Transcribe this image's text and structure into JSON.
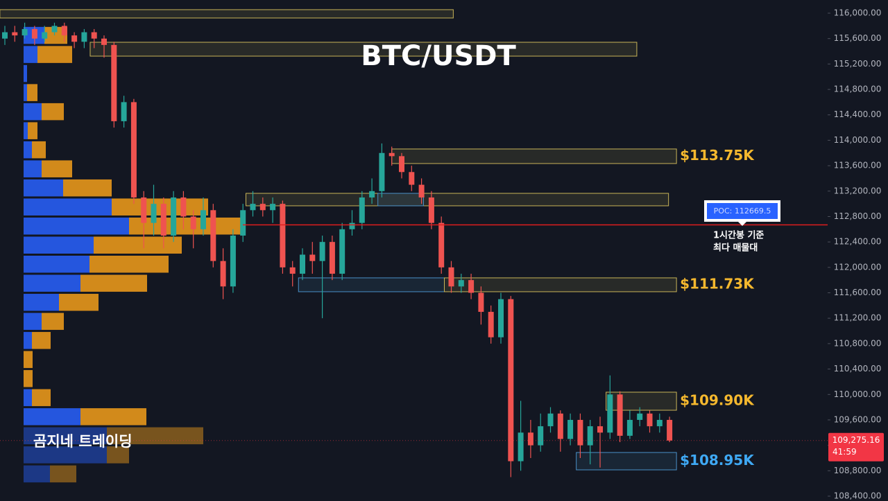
{
  "chart_data": {
    "type": "candlestick",
    "title": "BTC/USDT",
    "watermark": "곰지네 트레이딩",
    "up_color": "#26a69a",
    "down_color": "#ef5350",
    "ylim": [
      108400,
      116000
    ],
    "yticks": [
      {
        "value": 108400,
        "label": "108,400.00"
      },
      {
        "value": 108800,
        "label": "108,800.00"
      },
      {
        "value": 109200,
        "label": "109,200.00"
      },
      {
        "value": 109600,
        "label": "109,600.00"
      },
      {
        "value": 110000,
        "label": "110,000.00"
      },
      {
        "value": 110400,
        "label": "110,400.00"
      },
      {
        "value": 110800,
        "label": "110,800.00"
      },
      {
        "value": 111200,
        "label": "111,200.00"
      },
      {
        "value": 111600,
        "label": "111,600.00"
      },
      {
        "value": 112000,
        "label": "112,000.00"
      },
      {
        "value": 112400,
        "label": "112,400.00"
      },
      {
        "value": 112800,
        "label": "112,800.00"
      },
      {
        "value": 113200,
        "label": "113,200.00"
      },
      {
        "value": 113600,
        "label": "113,600.00"
      },
      {
        "value": 114000,
        "label": "114,000.00"
      },
      {
        "value": 114400,
        "label": "114,400.00"
      },
      {
        "value": 114800,
        "label": "114,800.00"
      },
      {
        "value": 115200,
        "label": "115,200.00"
      },
      {
        "value": 115600,
        "label": "115,600.00"
      },
      {
        "value": 116000,
        "label": "116,000.00"
      }
    ],
    "open": [
      115600,
      115700,
      115650,
      115750,
      115600,
      115700,
      115800,
      115650,
      115550,
      115700,
      115600,
      115500,
      114300,
      114600,
      113100,
      112700,
      113000,
      112500,
      113100,
      112800,
      112600,
      112900,
      112100,
      111700,
      112500,
      112900,
      113000,
      112900,
      113000,
      112000,
      111900,
      112200,
      112100,
      112400,
      111900,
      112600,
      112700,
      113100,
      113200,
      113800,
      113750,
      113500,
      113300,
      113100,
      112700,
      112000,
      111700,
      111800,
      111600,
      111300,
      110900,
      111500,
      108950,
      109400,
      109200,
      109500,
      109700,
      109300,
      109600,
      109200,
      109500,
      109400,
      110000,
      109350,
      109600,
      109700,
      109500,
      109600
    ],
    "high": [
      115800,
      115800,
      115850,
      115800,
      115800,
      115850,
      115850,
      115700,
      115750,
      115750,
      115650,
      115550,
      114700,
      114650,
      113200,
      113300,
      113100,
      113200,
      113200,
      112900,
      113100,
      113000,
      112300,
      112600,
      113000,
      113200,
      113100,
      113100,
      113050,
      112100,
      112300,
      112400,
      112500,
      112500,
      112700,
      112900,
      113200,
      113400,
      113950,
      113900,
      113800,
      113600,
      113400,
      113200,
      112800,
      112100,
      111900,
      111900,
      111700,
      111400,
      111600,
      111550,
      109900,
      109600,
      109700,
      109800,
      109750,
      109700,
      109700,
      109600,
      109650,
      110300,
      110050,
      109750,
      109800,
      109750,
      109700,
      109650
    ],
    "low": [
      115500,
      115550,
      115600,
      115500,
      115550,
      115650,
      115550,
      115450,
      115450,
      115450,
      115300,
      114200,
      114200,
      113000,
      112300,
      112500,
      112300,
      112400,
      112600,
      112300,
      112500,
      112000,
      111500,
      111600,
      112400,
      112800,
      112800,
      112700,
      111900,
      111700,
      111800,
      111900,
      111200,
      111800,
      111800,
      112500,
      112600,
      113000,
      113100,
      113600,
      113400,
      113200,
      113000,
      112600,
      111900,
      111600,
      111600,
      111500,
      111100,
      110800,
      110800,
      108700,
      108800,
      109000,
      109100,
      109400,
      109100,
      109200,
      109000,
      108900,
      108850,
      109300,
      109250,
      109300,
      109500,
      109400,
      109400,
      109250
    ],
    "close": [
      115700,
      115650,
      115750,
      115600,
      115700,
      115800,
      115650,
      115550,
      115700,
      115600,
      115500,
      114300,
      114600,
      113100,
      112700,
      113000,
      112500,
      113100,
      112800,
      112600,
      112900,
      112100,
      111700,
      112500,
      112900,
      113000,
      112900,
      113000,
      112000,
      111900,
      112200,
      112100,
      112400,
      111900,
      112600,
      112700,
      113100,
      113200,
      113800,
      113750,
      113500,
      113300,
      113100,
      112700,
      112000,
      111700,
      111800,
      111600,
      111300,
      110900,
      111500,
      108950,
      109400,
      109200,
      109500,
      109700,
      109300,
      109600,
      109200,
      109500,
      109400,
      110000,
      109350,
      109600,
      109700,
      109500,
      109600,
      109275
    ],
    "volume_profile": {
      "bins": [
        115800,
        115500,
        115200,
        114900,
        114600,
        114300,
        114000,
        113700,
        113400,
        113100,
        112800,
        112500,
        112200,
        111900,
        111600,
        111300,
        111000,
        110700,
        110400,
        110100,
        109800,
        109500,
        109200,
        108900,
        108600
      ],
      "up_color": "#2962ff",
      "down_color": "#f59f1a",
      "up": [
        30,
        20,
        5,
        5,
        26,
        6,
        12,
        26,
        57,
        127,
        152,
        101,
        95,
        82,
        51,
        26,
        12,
        0,
        0,
        12,
        82,
        120,
        120,
        38
      ],
      "down": [
        33,
        50,
        0,
        15,
        32,
        14,
        20,
        44,
        70,
        139,
        165,
        127,
        114,
        96,
        57,
        32,
        27,
        13,
        13,
        27,
        95,
        139,
        32,
        38
      ]
    },
    "zones": [
      {
        "top": 116055,
        "bottom": 115924,
        "start": -0.5,
        "end": 45.2,
        "color": "#c9b458"
      },
      {
        "top": 115542,
        "bottom": 115324,
        "start": 8.6,
        "end": 63.7,
        "color": "#c9b458"
      },
      {
        "top": 113863,
        "bottom": 113634,
        "start": 39,
        "end": 67.7,
        "color": "#c9b458",
        "label": "$113.75K"
      },
      {
        "top": 113165,
        "bottom": 112969,
        "start": 24.3,
        "end": 66.9,
        "color": "#c9b458"
      },
      {
        "top": 113165,
        "bottom": 112969,
        "start": 37.6,
        "end": 42.2,
        "color": "#4a90c8"
      },
      {
        "top": 111835,
        "bottom": 111617,
        "start": 29.6,
        "end": 44.3,
        "color": "#4a90c8"
      },
      {
        "top": 111835,
        "bottom": 111617,
        "start": 44.3,
        "end": 67.7,
        "color": "#c9b458",
        "label": "$111.73K"
      },
      {
        "top": 110036,
        "bottom": 109752,
        "start": 60.6,
        "end": 67.7,
        "color": "#c9b458",
        "label": "$109.90K"
      },
      {
        "top": 109087,
        "bottom": 108814,
        "start": 57.6,
        "end": 67.7,
        "color": "#4a90c8",
        "label": "$108.95K"
      }
    ],
    "poc": {
      "value": 112669.5,
      "label": "POC: 112669.5",
      "color": "#e01e1e",
      "note": [
        "1시간봉 기준",
        "최다 매물대"
      ]
    },
    "last_price": {
      "value": 109275.16,
      "label": "109,275.16",
      "countdown": "41:59",
      "color": "#f23645"
    }
  }
}
